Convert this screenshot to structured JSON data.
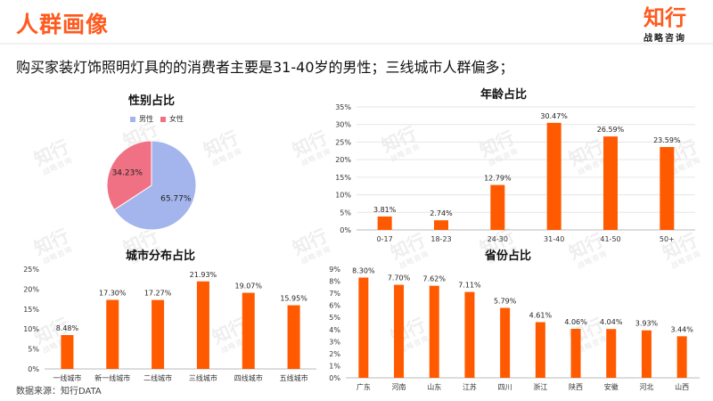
{
  "header": {
    "title": "人群画像",
    "logo_main": "知行",
    "logo_sub": "战略咨询"
  },
  "subtitle": "购买家装灯饰照明灯具的的消费者主要是31-40岁的男性；三线城市人群偏多；",
  "source": "数据来源：知行DATA",
  "watermark": {
    "main": "知行",
    "sub": "战略咨询"
  },
  "colors": {
    "accent": "#ff5a1f",
    "bar": "#ff5a00",
    "male": "#a4b4ec",
    "female": "#f07184",
    "grid": "#e6e6e6"
  },
  "chart_data": [
    {
      "id": "gender",
      "type": "pie",
      "title": "性别占比",
      "labels": [
        "男性",
        "女性"
      ],
      "values": [
        65.77,
        34.23
      ],
      "value_labels": [
        "65.77%",
        "34.23%"
      ],
      "legend": "top"
    },
    {
      "id": "age",
      "type": "bar",
      "title": "年龄占比",
      "categories": [
        "0-17",
        "18-23",
        "24-30",
        "31-40",
        "41-50",
        "50+"
      ],
      "values": [
        3.81,
        2.74,
        12.79,
        30.47,
        26.59,
        23.59
      ],
      "value_labels": [
        "3.81%",
        "2.74%",
        "12.79%",
        "30.47%",
        "26.59%",
        "23.59%"
      ],
      "ylim": [
        0,
        35
      ],
      "yticks": [
        "0%",
        "5%",
        "10%",
        "15%",
        "20%",
        "25%",
        "30%",
        "35%"
      ],
      "grid": true
    },
    {
      "id": "city",
      "type": "bar",
      "title": "城市分布占比",
      "categories": [
        "一线城市",
        "新一线城市",
        "二线城市",
        "三线城市",
        "四线城市",
        "五线城市"
      ],
      "values": [
        8.48,
        17.3,
        17.27,
        21.93,
        19.07,
        15.95
      ],
      "value_labels": [
        "8.48%",
        "17.30%",
        "17.27%",
        "21.93%",
        "19.07%",
        "15.95%"
      ],
      "ylim": [
        0,
        25
      ],
      "yticks": [
        "0%",
        "5%",
        "10%",
        "15%",
        "20%",
        "25%"
      ],
      "grid": false
    },
    {
      "id": "province",
      "type": "bar",
      "title": "省份占比",
      "categories": [
        "广东",
        "河南",
        "山东",
        "江苏",
        "四川",
        "浙江",
        "陕西",
        "安徽",
        "河北",
        "山西"
      ],
      "values": [
        8.3,
        7.7,
        7.62,
        7.11,
        5.79,
        4.61,
        4.06,
        4.04,
        3.93,
        3.44
      ],
      "value_labels": [
        "8.30%",
        "7.70%",
        "7.62%",
        "7.11%",
        "5.79%",
        "4.61%",
        "4.06%",
        "4.04%",
        "3.93%",
        "3.44%"
      ],
      "ylim": [
        0,
        9
      ],
      "yticks": [
        "0%",
        "1%",
        "2%",
        "3%",
        "4%",
        "5%",
        "6%",
        "7%",
        "8%",
        "9%"
      ],
      "grid": false
    }
  ]
}
